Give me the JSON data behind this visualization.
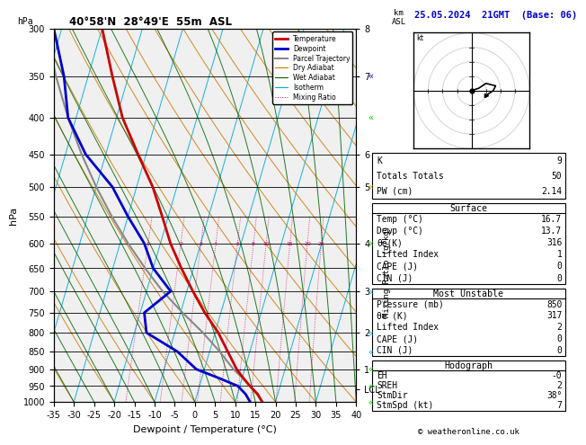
{
  "title_left": "40°58'N  28°49'E  55m  ASL",
  "title_right": "25.05.2024  21GMT  (Base: 06)",
  "xlabel": "Dewpoint / Temperature (°C)",
  "ylabel_left": "hPa",
  "pressure_levels": [
    300,
    350,
    400,
    450,
    500,
    550,
    600,
    650,
    700,
    750,
    800,
    850,
    900,
    950,
    1000
  ],
  "xlim": [
    -35,
    40
  ],
  "pmin": 300,
  "pmax": 1000,
  "C_skew": 27.0,
  "temp_profile_p": [
    1000,
    975,
    950,
    925,
    900,
    850,
    800,
    750,
    700,
    650,
    600,
    550,
    500,
    450,
    400,
    350,
    300
  ],
  "temp_profile_t": [
    16.7,
    15.0,
    12.5,
    10.2,
    8.0,
    4.5,
    0.8,
    -4.0,
    -8.5,
    -13.0,
    -17.5,
    -21.5,
    -26.0,
    -32.0,
    -38.5,
    -44.0,
    -50.0
  ],
  "dewp_profile_p": [
    1000,
    975,
    950,
    925,
    900,
    850,
    800,
    750,
    700,
    650,
    600,
    550,
    500,
    450,
    400,
    350,
    300
  ],
  "dewp_profile_t": [
    13.7,
    12.0,
    9.5,
    4.0,
    -2.0,
    -8.0,
    -17.0,
    -19.0,
    -14.0,
    -20.0,
    -24.0,
    -30.0,
    -36.0,
    -45.0,
    -52.0,
    -56.0,
    -62.0
  ],
  "parcel_profile_p": [
    1000,
    975,
    950,
    925,
    900,
    850,
    800,
    750,
    700,
    650,
    600,
    550,
    500,
    450,
    400,
    350,
    300
  ],
  "parcel_profile_t": [
    16.7,
    14.8,
    12.5,
    10.0,
    7.2,
    2.5,
    -3.0,
    -9.5,
    -16.0,
    -22.0,
    -28.0,
    -34.0,
    -40.0,
    -46.0,
    -52.0,
    -58.0,
    -64.0
  ],
  "km_ticks_labels": [
    "8",
    "7",
    "6",
    "5",
    "4",
    "3",
    "2",
    "1",
    "LCL"
  ],
  "km_ticks_pressures": [
    300,
    350,
    450,
    500,
    600,
    700,
    800,
    900,
    960
  ],
  "mixing_ratio_vals": [
    1,
    2,
    3,
    4,
    6,
    8,
    10,
    15,
    20,
    25
  ],
  "mixing_ratio_p_label": 600,
  "K": "9",
  "Totals_Totals": "50",
  "PW_cm": "2.14",
  "surface_title": "Surface",
  "surface_rows": [
    [
      "Temp (°C)",
      "16.7"
    ],
    [
      "Dewp (°C)",
      "13.7"
    ],
    [
      "θe(K)",
      "316"
    ],
    [
      "Lifted Index",
      "1"
    ],
    [
      "CAPE (J)",
      "0"
    ],
    [
      "CIN (J)",
      "0"
    ]
  ],
  "mu_title": "Most Unstable",
  "mu_rows": [
    [
      "Pressure (mb)",
      "850"
    ],
    [
      "θe (K)",
      "317"
    ],
    [
      "Lifted Index",
      "2"
    ],
    [
      "CAPE (J)",
      "0"
    ],
    [
      "CIN (J)",
      "0"
    ]
  ],
  "hodo_title": "Hodograph",
  "hodo_rows": [
    [
      "EH",
      "-0"
    ],
    [
      "SREH",
      "2"
    ],
    [
      "StmDir",
      "38°"
    ],
    [
      "StmSpd (kt)",
      "7"
    ]
  ],
  "bg_color": "#ffffff",
  "sounding_bg": "#f0f0f0",
  "temp_color": "#cc0000",
  "dewp_color": "#0000cc",
  "parcel_color": "#888888",
  "dry_adiabat_color": "#cc7700",
  "wet_adiabat_color": "#006600",
  "isotherm_color": "#00aadd",
  "mixing_ratio_color": "#cc0066",
  "grid_color": "#000000",
  "hodo_u": [
    0.0,
    1.5,
    3.0,
    5.0,
    4.5,
    3.0
  ],
  "hodo_v": [
    0.0,
    0.5,
    1.5,
    1.0,
    0.0,
    -1.0
  ],
  "wind_chevrons": [
    {
      "p": 350,
      "color": "#0000ff"
    },
    {
      "p": 400,
      "color": "#00cc00"
    },
    {
      "p": 500,
      "color": "#cc9900"
    },
    {
      "p": 600,
      "color": "#00cc00"
    },
    {
      "p": 700,
      "color": "#00aadd"
    },
    {
      "p": 800,
      "color": "#00aadd"
    },
    {
      "p": 850,
      "color": "#00aadd"
    },
    {
      "p": 900,
      "color": "#00cc00"
    },
    {
      "p": 950,
      "color": "#00cc00"
    },
    {
      "p": 1000,
      "color": "#00cc00"
    }
  ]
}
